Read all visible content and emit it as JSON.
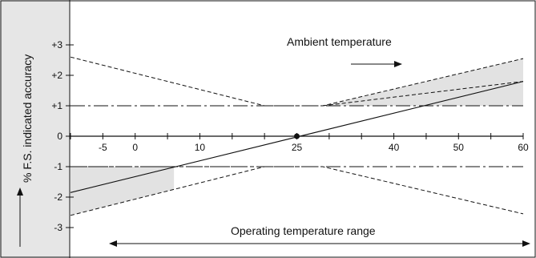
{
  "chart_data": {
    "type": "line",
    "title": "",
    "ylabel": "% F.S. indicated accuracy",
    "xlabel": "",
    "xlim": [
      -10,
      60
    ],
    "ylim": [
      -3.5,
      3.5
    ],
    "x_ticks": [
      -5,
      0,
      10,
      25,
      40,
      50,
      60
    ],
    "y_ticks": [
      3,
      2,
      1,
      0,
      -1,
      -2,
      -3
    ],
    "y_tick_labels": [
      "+3",
      "+2",
      "+1",
      "0",
      "-1",
      "-2",
      "-3"
    ],
    "reference_point": {
      "x": 25,
      "y": 0
    },
    "series": [
      {
        "values": [
          {
            "x": -10,
            "y": -1.85
          },
          {
            "x": 60,
            "y": 1.8
          }
        ],
        "style": "solid"
      },
      {
        "values": [
          {
            "x": -10,
            "y": 2.6
          },
          {
            "x": 20,
            "y": 1.0
          },
          {
            "x": 29,
            "y": 1.0
          },
          {
            "x": 60,
            "y": 2.55
          }
        ],
        "style": "dashed"
      },
      {
        "values": [
          {
            "x": -10,
            "y": -2.6
          },
          {
            "x": 20,
            "y": -1.0
          },
          {
            "x": 29,
            "y": -1.0
          },
          {
            "x": 60,
            "y": -2.55
          }
        ],
        "style": "dashed"
      },
      {
        "values": [
          {
            "x": -10,
            "y": -1.0
          },
          {
            "x": 29,
            "y": -1.0
          }
        ],
        "style": "dashed"
      },
      {
        "values": [
          {
            "x": 29,
            "y": 1.0
          },
          {
            "x": 60,
            "y": 1.8
          }
        ],
        "style": "dashed"
      }
    ],
    "reference_lines": [
      1,
      -1
    ],
    "shaded_regions": [
      {
        "x_from": -10,
        "x_to": 6,
        "between": "lower"
      },
      {
        "x_from": 29,
        "x_to": 60,
        "between": "upper"
      }
    ],
    "annotations": {
      "ambient": "Ambient temperature",
      "operating": "Operating temperature range"
    },
    "colors": {
      "shade": "#e2e2e2",
      "axis": "#111111",
      "ylabel_band": "#e6e6e6"
    },
    "grid": false
  }
}
